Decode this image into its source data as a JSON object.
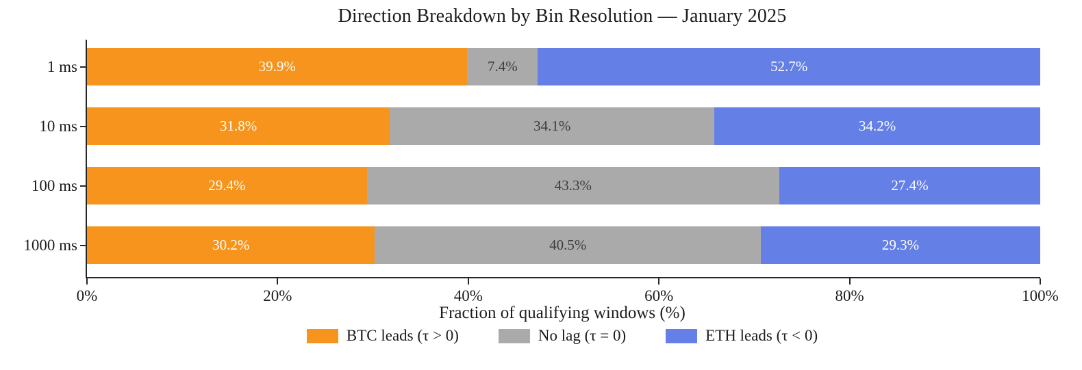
{
  "title": "Direction Breakdown by Bin Resolution — January 2025",
  "chart_data": {
    "type": "bar",
    "variant": "horizontal_stacked",
    "title": "Direction Breakdown by Bin Resolution — January 2025",
    "xlabel": "Fraction of qualifying windows (%)",
    "ylabel": "",
    "categories": [
      "1 ms",
      "10 ms",
      "100 ms",
      "1000 ms"
    ],
    "series": [
      {
        "id": "btc-leads",
        "name": "BTC leads (τ > 0)",
        "color": "#F6941D",
        "label_color": "#FFFFFF",
        "values": [
          39.9,
          31.8,
          29.4,
          30.2
        ]
      },
      {
        "id": "no-lag",
        "name": "No lag (τ = 0)",
        "color": "#AAAAAA",
        "label_color": "#3D3D3D",
        "values": [
          7.4,
          34.1,
          43.3,
          40.5
        ]
      },
      {
        "id": "eth-leads",
        "name": "ETH leads (τ < 0)",
        "color": "#6480E6",
        "label_color": "#FFFFFF",
        "values": [
          52.7,
          34.2,
          27.4,
          29.3
        ]
      }
    ],
    "xlim": [
      0,
      100
    ],
    "xticks": [
      0,
      20,
      40,
      60,
      80,
      100
    ],
    "xtick_labels": [
      "0%",
      "20%",
      "40%",
      "60%",
      "80%",
      "100%"
    ],
    "value_suffix": "%",
    "grid": false,
    "legend_position": "bottom",
    "axis_color": "#262626",
    "text_color": "#1C1C1C"
  }
}
